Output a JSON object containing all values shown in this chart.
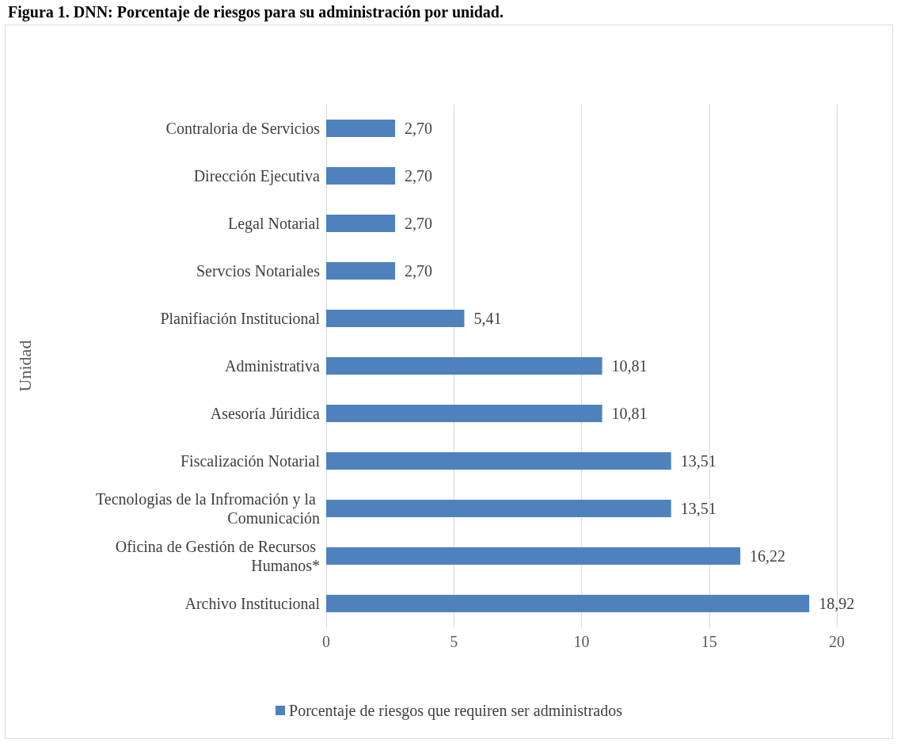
{
  "chart_data": {
    "type": "bar",
    "orientation": "horizontal",
    "title": "Figura 1. DNN: Porcentaje de riesgos para su administración por unidad.",
    "ylabel": "Unidad",
    "categories": [
      "Contraloria de Servicios",
      "Dirección Ejecutiva",
      "Legal Notarial",
      "Servcios Notariales",
      "Planifiación Institucional",
      "Administrativa",
      "Asesoría Júridica",
      "Fiscalización Notarial",
      "Tecnologias de la Infromación y la Comunicación",
      "Oficina de Gestión de Recursos Humanos*",
      "Archivo Institucional"
    ],
    "series": [
      {
        "name": "Porcentaje de riesgos que requiren ser administrados",
        "color": "#4f81bd",
        "values": [
          2.7,
          2.7,
          2.7,
          2.7,
          5.41,
          10.81,
          10.81,
          13.51,
          13.51,
          16.22,
          18.92
        ],
        "value_labels": [
          "2,70",
          "2,70",
          "2,70",
          "2,70",
          "5,41",
          "10,81",
          "10,81",
          "13,51",
          "13,51",
          "16,22",
          "18,92"
        ]
      }
    ],
    "xlim": [
      0,
      20
    ],
    "xticks": [
      0,
      5,
      10,
      15,
      20
    ],
    "grid": "x",
    "legend": "bottom"
  }
}
